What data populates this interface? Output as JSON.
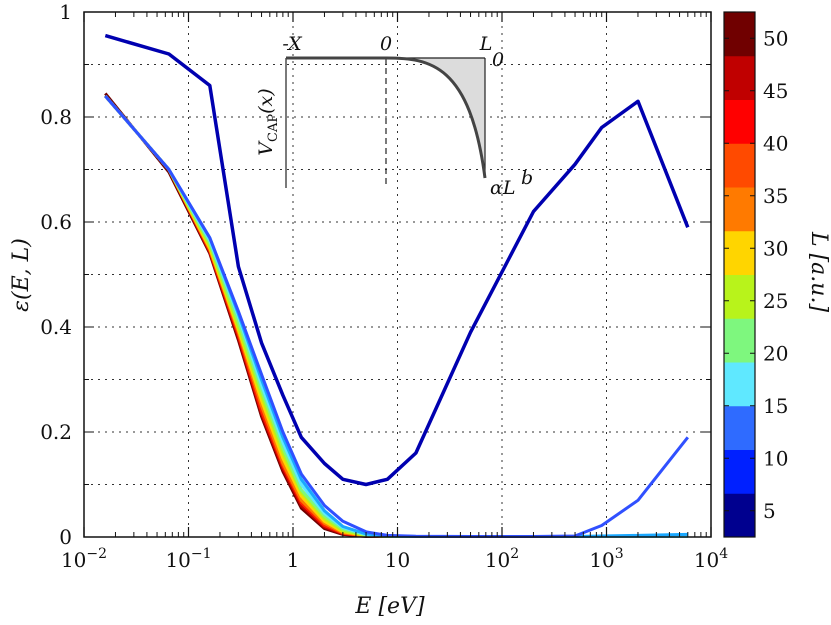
{
  "chart_data": {
    "type": "line",
    "title": "",
    "xlabel": "E [eV]",
    "ylabel": "ε(E, L)",
    "xscale": "log",
    "xlim": [
      0.01,
      10000
    ],
    "ylim": [
      0,
      1
    ],
    "grid": true,
    "x_ticks": [
      {
        "value": 0.01,
        "label": "10−2"
      },
      {
        "value": 0.1,
        "label": "10−1"
      },
      {
        "value": 1,
        "label": "1"
      },
      {
        "value": 10,
        "label": "10"
      },
      {
        "value": 100,
        "label": "102"
      },
      {
        "value": 1000,
        "label": "103"
      },
      {
        "value": 10000,
        "label": "104"
      }
    ],
    "y_ticks": [
      {
        "value": 0,
        "label": "0"
      },
      {
        "value": 0.2,
        "label": "0.2"
      },
      {
        "value": 0.4,
        "label": "0.4"
      },
      {
        "value": 0.6,
        "label": "0.6"
      },
      {
        "value": 0.8,
        "label": "0.8"
      },
      {
        "value": 1,
        "label": "1"
      }
    ],
    "colorbar": {
      "label": "L [a.u.]",
      "min": 2.5,
      "max": 52.5,
      "tick_labels": [
        "5",
        "10",
        "15",
        "20",
        "25",
        "30",
        "35",
        "40",
        "45",
        "50"
      ],
      "tick_values": [
        5,
        10,
        15,
        20,
        25,
        30,
        35,
        40,
        45,
        50
      ],
      "colors": [
        "#00008f",
        "#0020ff",
        "#2f6bff",
        "#5fe8ff",
        "#7ef77e",
        "#b8f31b",
        "#ffd500",
        "#ff7a00",
        "#ff4a00",
        "#ff0000",
        "#c00000",
        "#700000"
      ]
    },
    "x": [
      0.016,
      0.065,
      0.16,
      0.3,
      0.5,
      0.8,
      1.2,
      2,
      3,
      5,
      8,
      15,
      50,
      200,
      500,
      900,
      2000,
      6000
    ],
    "series": [
      {
        "name": "L=5",
        "color": "#0000b0",
        "values": [
          0.955,
          0.92,
          0.86,
          0.515,
          0.37,
          0.27,
          0.19,
          0.14,
          0.11,
          0.1,
          0.11,
          0.16,
          0.39,
          0.62,
          0.71,
          0.78,
          0.83,
          0.59
        ]
      },
      {
        "name": "L=10",
        "color": "#3050ff",
        "values": [
          0.84,
          0.7,
          0.57,
          0.43,
          0.31,
          0.2,
          0.12,
          0.06,
          0.03,
          0.01,
          0.003,
          0.0015,
          0.001,
          0.001,
          0.002,
          0.022,
          0.07,
          0.19
        ]
      },
      {
        "name": "L=15",
        "color": "#1aa8ff",
        "values": [
          0.84,
          0.7,
          0.57,
          0.425,
          0.3,
          0.19,
          0.11,
          0.05,
          0.02,
          0.006,
          0.002,
          0.001,
          0.001,
          0.001,
          0.001,
          0.002,
          0.003,
          0.005
        ]
      },
      {
        "name": "L=20",
        "color": "#5fe8ff",
        "values": [
          0.84,
          0.7,
          0.565,
          0.42,
          0.29,
          0.18,
          0.1,
          0.045,
          0.018,
          0.005,
          0.002,
          0.001,
          0.001,
          0.001,
          0.001,
          0.001,
          0.001,
          0.001
        ]
      },
      {
        "name": "L=25",
        "color": "#7ef77e",
        "values": [
          0.84,
          0.7,
          0.56,
          0.41,
          0.28,
          0.17,
          0.09,
          0.04,
          0.015,
          0.004,
          0.001,
          0.001,
          0.001,
          0.001,
          0.001,
          0.001,
          0.001,
          0.001
        ]
      },
      {
        "name": "L=30",
        "color": "#b8f31b",
        "values": [
          0.84,
          0.7,
          0.555,
          0.4,
          0.27,
          0.16,
          0.085,
          0.035,
          0.012,
          0.003,
          0.001,
          0.001,
          0.001,
          0.001,
          0.001,
          0.001,
          0.001,
          0.001
        ]
      },
      {
        "name": "L=35",
        "color": "#ffd500",
        "values": [
          0.84,
          0.7,
          0.55,
          0.395,
          0.26,
          0.15,
          0.078,
          0.03,
          0.01,
          0.003,
          0.001,
          0.001,
          0.001,
          0.001,
          0.001,
          0.001,
          0.001,
          0.001
        ]
      },
      {
        "name": "L=40",
        "color": "#ff7a00",
        "values": [
          0.84,
          0.7,
          0.548,
          0.39,
          0.25,
          0.14,
          0.07,
          0.026,
          0.008,
          0.002,
          0.001,
          0.001,
          0.001,
          0.001,
          0.001,
          0.001,
          0.001,
          0.001
        ]
      },
      {
        "name": "L=45",
        "color": "#ff2000",
        "values": [
          0.84,
          0.7,
          0.545,
          0.385,
          0.24,
          0.135,
          0.065,
          0.022,
          0.007,
          0.002,
          0.001,
          0.001,
          0.001,
          0.001,
          0.001,
          0.001,
          0.001,
          0.001
        ]
      },
      {
        "name": "L=50",
        "color": "#c00000",
        "values": [
          0.84,
          0.7,
          0.543,
          0.38,
          0.235,
          0.13,
          0.06,
          0.019,
          0.006,
          0.002,
          0.001,
          0.001,
          0.001,
          0.001,
          0.001,
          0.001,
          0.001,
          0.001
        ]
      },
      {
        "name": "L=52",
        "color": "#700000",
        "values": [
          0.845,
          0.695,
          0.54,
          0.375,
          0.23,
          0.125,
          0.055,
          0.016,
          0.005,
          0.001,
          0.001,
          0.001,
          0.001,
          0.001,
          0.001,
          0.001,
          0.001,
          0.001
        ]
      }
    ],
    "inset": {
      "labels": {
        "minus_x": "-X",
        "zero_top": "0",
        "l_label": "L",
        "zero_right": "0",
        "v_label": "VCAP(x)",
        "alpha_label": "αL",
        "alpha_exp": "b"
      }
    }
  }
}
